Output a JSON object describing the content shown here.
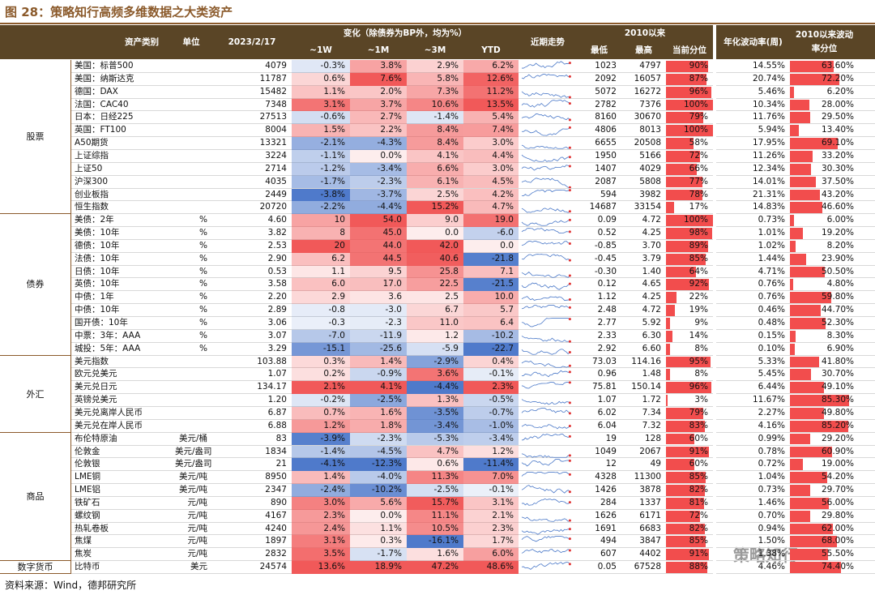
{
  "header": {
    "title": "图 28：策略知行高频多维数据之大类资产"
  },
  "columns": {
    "category": "资产类别",
    "unit": "单位",
    "date": "2023/2/17",
    "change": "变化（除债券为BP外，均为%）",
    "w1": "~1W",
    "m1": "~1M",
    "m3": "~3M",
    "ytd": "YTD",
    "trend": "近期走势",
    "since": "2010以来",
    "low": "最低",
    "high": "最高",
    "pct": "当前分位",
    "vol": "年化波动率(周)",
    "volpct": "2010以来波动率分位"
  },
  "table": {
    "groups": [
      {
        "label": "股票",
        "rows": [
          [
            "美国：标普500",
            null,
            "4079",
            "-0.3%",
            "3.8%",
            "2.9%",
            "6.2%",
            "1023",
            "4797",
            "90%",
            "14.55%",
            "63.60%"
          ],
          [
            "美国：纳斯达克",
            null,
            "11787",
            "0.6%",
            "7.6%",
            "5.8%",
            "12.6%",
            "2092",
            "16057",
            "87%",
            "20.74%",
            "72.20%"
          ],
          [
            "德国：DAX",
            null,
            "15482",
            "1.1%",
            "2.0%",
            "7.3%",
            "11.2%",
            "5072",
            "16272",
            "96%",
            "5.46%",
            "6.20%"
          ],
          [
            "法国：CAC40",
            null,
            "7348",
            "3.1%",
            "3.7%",
            "10.6%",
            "13.5%",
            "2782",
            "7376",
            "100%",
            "10.34%",
            "28.00%"
          ],
          [
            "日本：日经225",
            null,
            "27513",
            "-0.6%",
            "2.7%",
            "-1.4%",
            "5.4%",
            "8160",
            "30670",
            "79%",
            "11.76%",
            "29.50%"
          ],
          [
            "英国：FT100",
            null,
            "8004",
            "1.5%",
            "2.2%",
            "8.4%",
            "7.4%",
            "4806",
            "8013",
            "100%",
            "5.94%",
            "13.40%"
          ],
          [
            "A50期货",
            null,
            "13321",
            "-2.1%",
            "-4.3%",
            "8.4%",
            "3.0%",
            "6655",
            "20508",
            "58%",
            "17.95%",
            "69.10%"
          ],
          [
            "上证综指",
            null,
            "3224",
            "-1.1%",
            "0.0%",
            "4.1%",
            "4.4%",
            "1950",
            "5166",
            "72%",
            "11.26%",
            "33.20%"
          ],
          [
            "上证50",
            null,
            "2714",
            "-1.2%",
            "-3.4%",
            "6.6%",
            "3.0%",
            "1407",
            "4029",
            "66%",
            "12.34%",
            "30.30%"
          ],
          [
            "沪深300",
            null,
            "4035",
            "-1.7%",
            "-2.3%",
            "6.1%",
            "4.5%",
            "2087",
            "5808",
            "77%",
            "14.01%",
            "37.50%"
          ],
          [
            "创业板指",
            null,
            "2449",
            "-3.8%",
            "-3.7%",
            "2.5%",
            "4.2%",
            "594",
            "3982",
            "78%",
            "21.31%",
            "43.20%"
          ],
          [
            "恒生指数",
            null,
            "20720",
            "-2.2%",
            "-4.4%",
            "15.2%",
            "4.7%",
            "14687",
            "33154",
            "17%",
            "14.83%",
            "46.60%"
          ]
        ]
      },
      {
        "label": "债券",
        "rows": [
          [
            "美债：2年",
            "%",
            "4.60",
            "10",
            "54.0",
            "9.0",
            "19.0",
            "0.09",
            "4.72",
            "100%",
            "0.73%",
            "6.00%"
          ],
          [
            "美债：10年",
            "%",
            "3.82",
            "8",
            "45.0",
            "0.0",
            "-6.0",
            "0.52",
            "4.25",
            "98%",
            "1.01%",
            "19.20%"
          ],
          [
            "德债：10年",
            "%",
            "2.53",
            "20",
            "44.0",
            "42.0",
            "0.0",
            "-0.85",
            "3.70",
            "89%",
            "1.02%",
            "8.20%"
          ],
          [
            "法债：10年",
            "%",
            "2.90",
            "6.2",
            "44.5",
            "40.6",
            "-21.8",
            "-0.45",
            "3.79",
            "85%",
            "1.44%",
            "23.90%"
          ],
          [
            "日债：10年",
            "%",
            "0.53",
            "1.1",
            "9.5",
            "25.8",
            "7.1",
            "-0.30",
            "1.40",
            "64%",
            "4.71%",
            "50.50%"
          ],
          [
            "英债：10年",
            "%",
            "3.58",
            "6.0",
            "17.0",
            "22.5",
            "-21.5",
            "0.12",
            "4.65",
            "92%",
            "0.76%",
            "4.80%"
          ],
          [
            "中债：1年",
            "%",
            "2.20",
            "2.9",
            "3.6",
            "2.5",
            "10.0",
            "1.12",
            "4.25",
            "22%",
            "0.76%",
            "59.80%"
          ],
          [
            "中债：10年",
            "%",
            "2.89",
            "-0.8",
            "-3.0",
            "6.7",
            "5.7",
            "2.48",
            "4.72",
            "19%",
            "0.46%",
            "44.70%"
          ],
          [
            "国开债：10年",
            "%",
            "3.06",
            "-0.3",
            "-2.3",
            "11.0",
            "6.4",
            "2.77",
            "5.92",
            "9%",
            "0.48%",
            "52.30%"
          ],
          [
            "中票：3年：AAA",
            "%",
            "3.07",
            "-7.0",
            "-11.9",
            "1.2",
            "-10.2",
            "2.33",
            "6.30",
            "14%",
            "0.15%",
            "8.30%"
          ],
          [
            "城投：5年：AAA",
            "%",
            "3.29",
            "-15.1",
            "-25.6",
            "-5.9",
            "-22.7",
            "2.92",
            "6.60",
            "8%",
            "0.10%",
            "6.90%"
          ]
        ]
      },
      {
        "label": "外汇",
        "rows": [
          [
            "美元指数",
            null,
            "103.88",
            "0.3%",
            "1.4%",
            "-2.9%",
            "0.4%",
            "73.03",
            "114.16",
            "95%",
            "5.33%",
            "41.80%"
          ],
          [
            "欧元兑美元",
            null,
            "1.07",
            "0.2%",
            "-0.9%",
            "3.6%",
            "-0.1%",
            "0.96",
            "1.48",
            "8%",
            "5.45%",
            "30.70%"
          ],
          [
            "美元兑日元",
            null,
            "134.17",
            "2.1%",
            "4.1%",
            "-4.4%",
            "2.3%",
            "75.81",
            "150.14",
            "96%",
            "6.44%",
            "49.10%"
          ],
          [
            "英镑兑美元",
            null,
            "1.20",
            "-0.2%",
            "-2.5%",
            "1.3%",
            "-0.5%",
            "1.07",
            "1.72",
            "3%",
            "11.67%",
            "85.30%"
          ],
          [
            "美元兑离岸人民币",
            null,
            "6.87",
            "0.7%",
            "1.6%",
            "-3.5%",
            "-0.7%",
            "6.02",
            "7.34",
            "79%",
            "2.27%",
            "49.80%"
          ],
          [
            "美元兑在岸人民币",
            null,
            "6.88",
            "1.2%",
            "1.8%",
            "-3.4%",
            "-1.0%",
            "6.04",
            "7.32",
            "83%",
            "4.16%",
            "85.20%"
          ]
        ]
      },
      {
        "label": "商品",
        "rows": [
          [
            "布伦特原油",
            "美元/桶",
            "83",
            "-3.9%",
            "-2.3%",
            "-5.3%",
            "-3.4%",
            "19",
            "128",
            "60%",
            "0.99%",
            "29.20%"
          ],
          [
            "伦敦金",
            "美元/盎司",
            "1834",
            "-1.4%",
            "-4.5%",
            "4.7%",
            "1.2%",
            "1049",
            "2067",
            "91%",
            "0.78%",
            "60.90%"
          ],
          [
            "伦敦银",
            "美元/盎司",
            "21",
            "-4.1%",
            "-12.3%",
            "0.6%",
            "-11.4%",
            "12",
            "49",
            "60%",
            "0.72%",
            "19.00%"
          ],
          [
            "LME铜",
            "美元/吨",
            "8950",
            "1.4%",
            "-4.0%",
            "11.3%",
            "7.0%",
            "4328",
            "11300",
            "85%",
            "1.04%",
            "54.20%"
          ],
          [
            "LME铝",
            "美元/吨",
            "2347",
            "-2.4%",
            "-10.2%",
            "-2.5%",
            "-0.1%",
            "1426",
            "3878",
            "82%",
            "0.73%",
            "29.70%"
          ],
          [
            "铁矿石",
            "元/吨",
            "890",
            "3.0%",
            "5.6%",
            "15.7%",
            "3.1%",
            "284",
            "1337",
            "81%",
            "1.46%",
            "56.00%"
          ],
          [
            "螺纹钢",
            "元/吨",
            "4167",
            "2.3%",
            "0.0%",
            "11.1%",
            "2.1%",
            "1626",
            "6171",
            "72%",
            "0.70%",
            "29.80%"
          ],
          [
            "热轧卷板",
            "元/吨",
            "4240",
            "2.4%",
            "1.1%",
            "10.5%",
            "2.3%",
            "1691",
            "6683",
            "82%",
            "0.94%",
            "62.00%"
          ],
          [
            "焦煤",
            "元/吨",
            "1897",
            "3.1%",
            "0.3%",
            "-16.1%",
            "1.7%",
            "494",
            "3847",
            "85%",
            "1.50%",
            "68.00%"
          ],
          [
            "焦炭",
            "元/吨",
            "2832",
            "3.5%",
            "-1.7%",
            "1.6%",
            "6.0%",
            "607",
            "4402",
            "91%",
            "1.38%",
            "55.50%"
          ]
        ]
      },
      {
        "label": "数字货币",
        "rows": [
          [
            "比特币",
            "美元",
            "24574",
            "13.6%",
            "18.9%",
            "47.2%",
            "48.6%",
            "0.05",
            "67528",
            "88%",
            "4.46%",
            "74.40%"
          ]
        ]
      }
    ]
  },
  "footer": {
    "source": "资料来源：Wind，德邦研究所"
  },
  "watermark": "策略知行"
}
